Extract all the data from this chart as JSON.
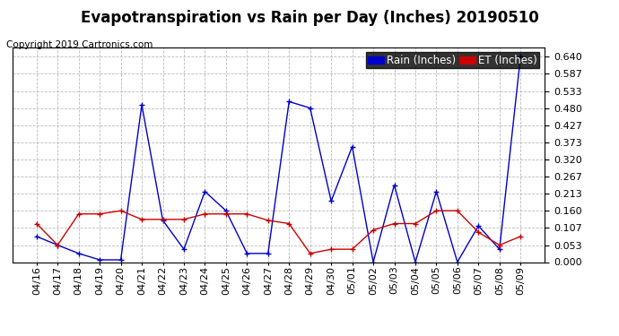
{
  "title": "Evapotranspiration vs Rain per Day (Inches) 20190510",
  "copyright": "Copyright 2019 Cartronics.com",
  "legend_rain": "Rain (Inches)",
  "dates": [
    "04/16",
    "04/17",
    "04/18",
    "04/19",
    "04/20",
    "04/21",
    "04/22",
    "04/23",
    "04/24",
    "04/25",
    "04/26",
    "04/27",
    "04/28",
    "04/29",
    "04/30",
    "05/01",
    "05/02",
    "05/03",
    "05/04",
    "05/05",
    "05/06",
    "05/07",
    "05/08",
    "05/09"
  ],
  "rain": [
    0.08,
    0.053,
    0.027,
    0.007,
    0.007,
    0.49,
    0.13,
    0.04,
    0.22,
    0.16,
    0.027,
    0.027,
    0.5,
    0.48,
    0.19,
    0.36,
    0.0,
    0.24,
    0.0,
    0.22,
    0.0,
    0.113,
    0.04,
    0.64
  ],
  "et": [
    0.12,
    0.053,
    0.15,
    0.15,
    0.16,
    0.133,
    0.133,
    0.133,
    0.15,
    0.15,
    0.15,
    0.13,
    0.12,
    0.027,
    0.04,
    0.04,
    0.1,
    0.12,
    0.12,
    0.16,
    0.16,
    0.093,
    0.053,
    0.08
  ],
  "rain_color": "#0000cc",
  "et_color": "#cc0000",
  "bg_color": "#ffffff",
  "yticks": [
    0.0,
    0.053,
    0.107,
    0.16,
    0.213,
    0.267,
    0.32,
    0.373,
    0.427,
    0.48,
    0.533,
    0.587,
    0.64
  ],
  "ylim": [
    0.0,
    0.67
  ],
  "grid_color": "#aaaaaa",
  "title_fontsize": 12,
  "copyright_fontsize": 7.5,
  "legend_fontsize": 8.5,
  "tick_fontsize": 8
}
